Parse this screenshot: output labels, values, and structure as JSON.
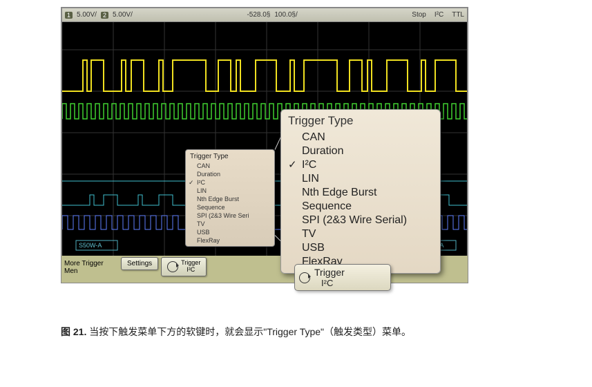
{
  "status_bar": {
    "ch1_marker": "1",
    "ch1_scale": "5.00V/",
    "ch2_marker": "2",
    "ch2_scale": "5.00V/",
    "delay": "-528.0§",
    "timebase": "100.0§/",
    "run_state": "Stop",
    "trigger_mode": "I²C",
    "trigger_label": "TTL"
  },
  "colors": {
    "yellow": "#f0e020",
    "green": "#40d030",
    "cyan": "#40c0d0",
    "blue": "#6080ff",
    "scope_bg": "#000000",
    "menu_bg_top": "#f0e8d8",
    "menu_bg_bot": "#e4d8c4",
    "softkey_bar": "#bfbf8f"
  },
  "small_menu": {
    "title": "Trigger Type",
    "items": [
      {
        "label": "CAN",
        "checked": false
      },
      {
        "label": "Duration",
        "checked": false
      },
      {
        "label": "I²C",
        "checked": true
      },
      {
        "label": "LIN",
        "checked": false
      },
      {
        "label": "Nth Edge Burst",
        "checked": false
      },
      {
        "label": "Sequence",
        "checked": false
      },
      {
        "label": "SPI (2&3 Wire Seri",
        "checked": false
      },
      {
        "label": "TV",
        "checked": false
      },
      {
        "label": "USB",
        "checked": false
      },
      {
        "label": "FlexRay",
        "checked": false
      }
    ]
  },
  "big_menu": {
    "title": "Trigger Type",
    "items": [
      {
        "label": "CAN",
        "checked": false
      },
      {
        "label": "Duration",
        "checked": false
      },
      {
        "label": "I²C",
        "checked": true
      },
      {
        "label": "LIN",
        "checked": false
      },
      {
        "label": "Nth Edge Burst",
        "checked": false
      },
      {
        "label": "Sequence",
        "checked": false
      },
      {
        "label": "SPI (2&3 Wire Serial)",
        "checked": false
      },
      {
        "label": "TV",
        "checked": false
      },
      {
        "label": "USB",
        "checked": false
      },
      {
        "label": "FlexRay",
        "checked": false
      }
    ]
  },
  "bottom_bar": {
    "more_label": "More Trigger Men",
    "settings_label": "Settings",
    "trigger_label": "Trigger",
    "trigger_sub": "I²C"
  },
  "big_softkey": {
    "label": "Trigger",
    "sub": "I²C"
  },
  "annotations": {
    "left_label": "S50W-A",
    "right_label": "S50RA"
  },
  "caption": {
    "fig_label": "图 21.",
    "text": "当按下触发菜单下方的软键时，就会显示\"Trigger Type\"（触发类型）菜单。"
  }
}
